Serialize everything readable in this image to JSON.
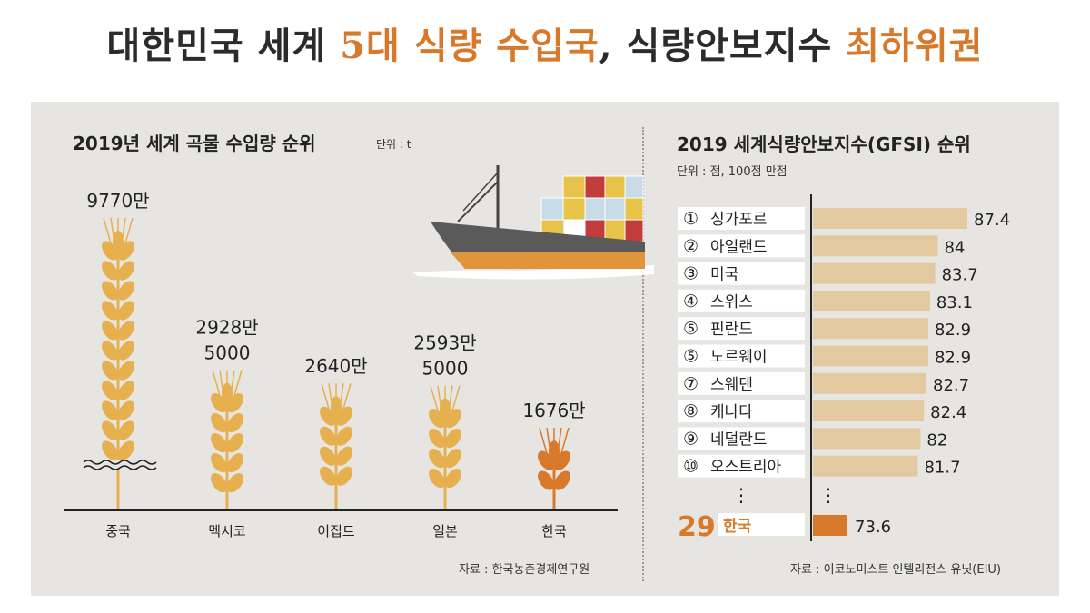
{
  "headline": {
    "part1": "대한민국 세계 ",
    "part2": "5대 식량 수입국",
    "part3": ",   식량안보지수 ",
    "part4": "최하위권"
  },
  "left": {
    "title": "2019년 세계 곡물 수입량 순위",
    "unit": "단위 : t",
    "source": "자료 : 한국농촌경제연구원"
  },
  "right": {
    "title": "2019 세계식량안보지수(GFSI) 순위",
    "unit": "단위 : 점, 100점 만점",
    "source": "자료 : 이코노미스트 인텔리전스 유닛(EIU)",
    "ellipsis": "⋮"
  },
  "colors": {
    "wheat": "#e6b04f",
    "wheat_dark": "#d8782b",
    "bar": "#e3c9a0",
    "highlight": "#d8782b",
    "panel": "#e7e5e2",
    "ship_hull": "#5a5a5a",
    "ship_stripe": "#e0953d"
  },
  "chart_data": [
    {
      "type": "bar",
      "title": "2019년 세계 곡물 수입량 순위",
      "unit": "단위 : t",
      "categories": [
        "중국",
        "멕시코",
        "이집트",
        "일본",
        "한국"
      ],
      "values": [
        97700000,
        29285000,
        26400000,
        25935000,
        16760000
      ],
      "value_labels": [
        [
          "9770만"
        ],
        [
          "2928만",
          "5000"
        ],
        [
          "2640만"
        ],
        [
          "2593만",
          "5000"
        ],
        [
          "1676만"
        ]
      ],
      "highlight": "한국"
    },
    {
      "type": "bar",
      "orientation": "horizontal",
      "title": "2019 세계식량안보지수(GFSI) 순위",
      "unit": "단위 : 점, 100점 만점",
      "rows": [
        {
          "rank": "①",
          "country": "싱가포르",
          "value": 87.4
        },
        {
          "rank": "②",
          "country": "아일랜드",
          "value": 84
        },
        {
          "rank": "③",
          "country": "미국",
          "value": 83.7
        },
        {
          "rank": "④",
          "country": "스위스",
          "value": 83.1
        },
        {
          "rank": "⑤",
          "country": "핀란드",
          "value": 82.9
        },
        {
          "rank": "⑤",
          "country": "노르웨이",
          "value": 82.9
        },
        {
          "rank": "⑦",
          "country": "스웨덴",
          "value": 82.7
        },
        {
          "rank": "⑧",
          "country": "캐나다",
          "value": 82.4
        },
        {
          "rank": "⑨",
          "country": "네덜란드",
          "value": 82
        },
        {
          "rank": "⑩",
          "country": "오스트리아",
          "value": 81.7
        }
      ],
      "highlight_row": {
        "rank": "29",
        "country": "한국",
        "value": 73.6
      }
    }
  ]
}
